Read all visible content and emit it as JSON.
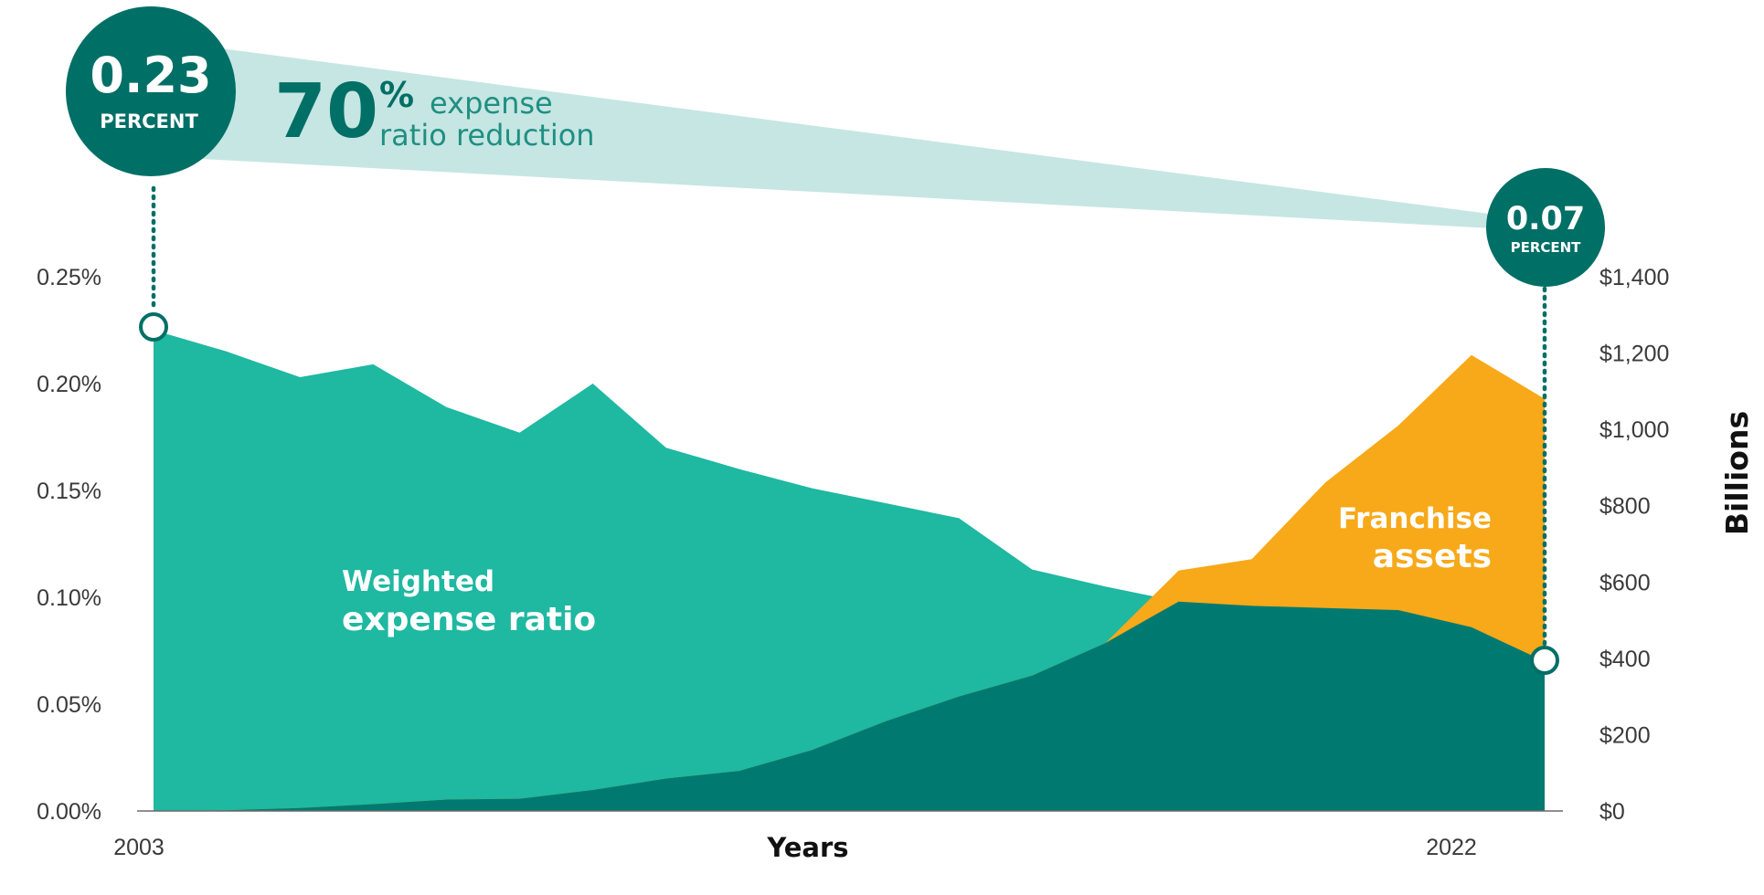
{
  "chart_data": {
    "type": "area",
    "title": "",
    "xlabel": "Years",
    "x_tick_labels": [
      "2003",
      "2022"
    ],
    "x": [
      2003,
      2004,
      2005,
      2006,
      2007,
      2008,
      2009,
      2010,
      2011,
      2012,
      2013,
      2014,
      2015,
      2016,
      2017,
      2018,
      2019,
      2020,
      2021,
      2022
    ],
    "ylabel_left": "",
    "ylabel_right": "Billions",
    "ylim_left": [
      0,
      0.25
    ],
    "ylim_right": [
      0,
      1400
    ],
    "y_ticks_left": [
      "0.00%",
      "0.05%",
      "0.10%",
      "0.15%",
      "0.20%",
      "0.25%"
    ],
    "y_ticks_right": [
      "$0",
      "$200",
      "$400",
      "$600",
      "$800",
      "$1,000",
      "$1,200",
      "$1,400"
    ],
    "series": [
      {
        "name": "Weighted expense ratio",
        "axis": "left",
        "color": "#1fb8a1",
        "values": [
          0.225,
          0.215,
          0.203,
          0.209,
          0.189,
          0.177,
          0.2,
          0.17,
          0.16,
          0.151,
          0.144,
          0.137,
          0.113,
          0.105,
          0.098,
          0.096,
          0.095,
          0.094,
          0.086,
          0.07
        ]
      },
      {
        "name": "Franchise assets",
        "axis": "right",
        "color": "#f7a919",
        "values": [
          0,
          2,
          8,
          18,
          30,
          32,
          55,
          85,
          105,
          160,
          235,
          300,
          355,
          440,
          630,
          660,
          860,
          1010,
          1195,
          1080
        ]
      }
    ],
    "overlap_color": "#007a71",
    "grid": false,
    "legend": "none"
  },
  "annotations": {
    "start_value": "0.23",
    "start_unit": "PERCENT",
    "end_value": "0.07",
    "end_unit": "PERCENT",
    "reduction_number": "70",
    "reduction_symbol": "%",
    "reduction_line1": "expense",
    "reduction_line2": "ratio reduction",
    "expense_label_line1": "Weighted",
    "expense_label_line2": "expense ratio",
    "assets_label_line1": "Franchise",
    "assets_label_line2": "assets",
    "bubble_color": "#006f66",
    "band_color": "#c6e6e3"
  }
}
